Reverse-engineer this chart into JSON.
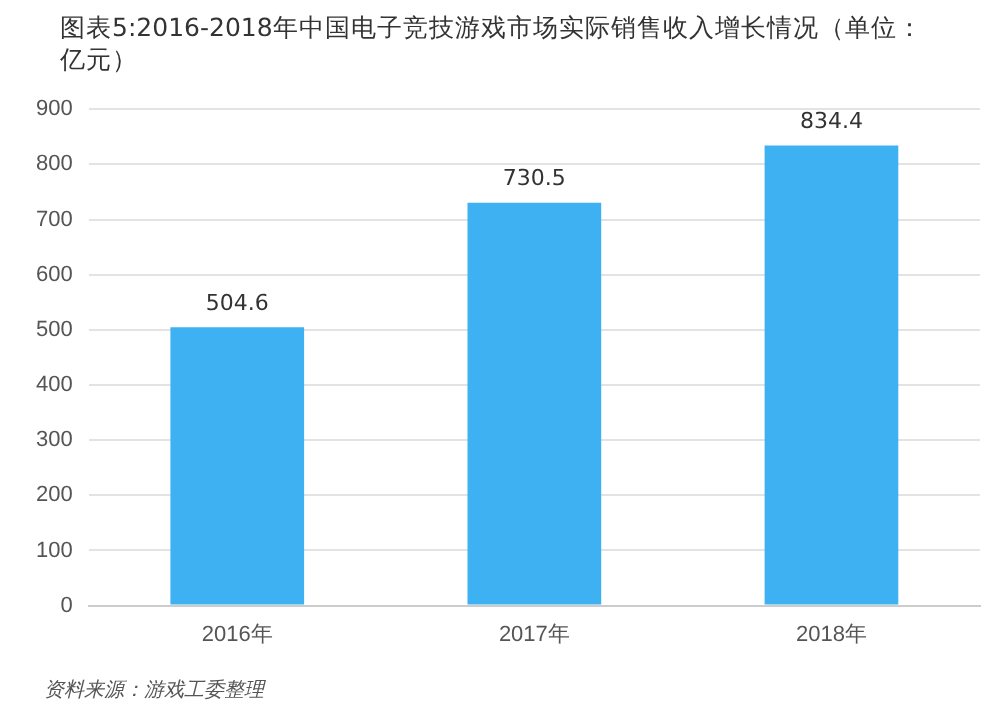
{
  "chart_data": {
    "type": "bar",
    "title": "图表5:2016-2018年中国电子竞技游戏市场实际销售收入增长情况（单位：亿元）",
    "categories": [
      "2016年",
      "2017年",
      "2018年"
    ],
    "values": [
      504.6,
      730.5,
      834.4
    ],
    "color": "#3db1f2",
    "ylim": [
      0,
      900
    ],
    "yticks": [
      0,
      100,
      200,
      300,
      400,
      500,
      600,
      700,
      800,
      900
    ],
    "grid": "y",
    "data_labels": true,
    "annotations": [
      "资料来源：游戏工委整理"
    ]
  }
}
